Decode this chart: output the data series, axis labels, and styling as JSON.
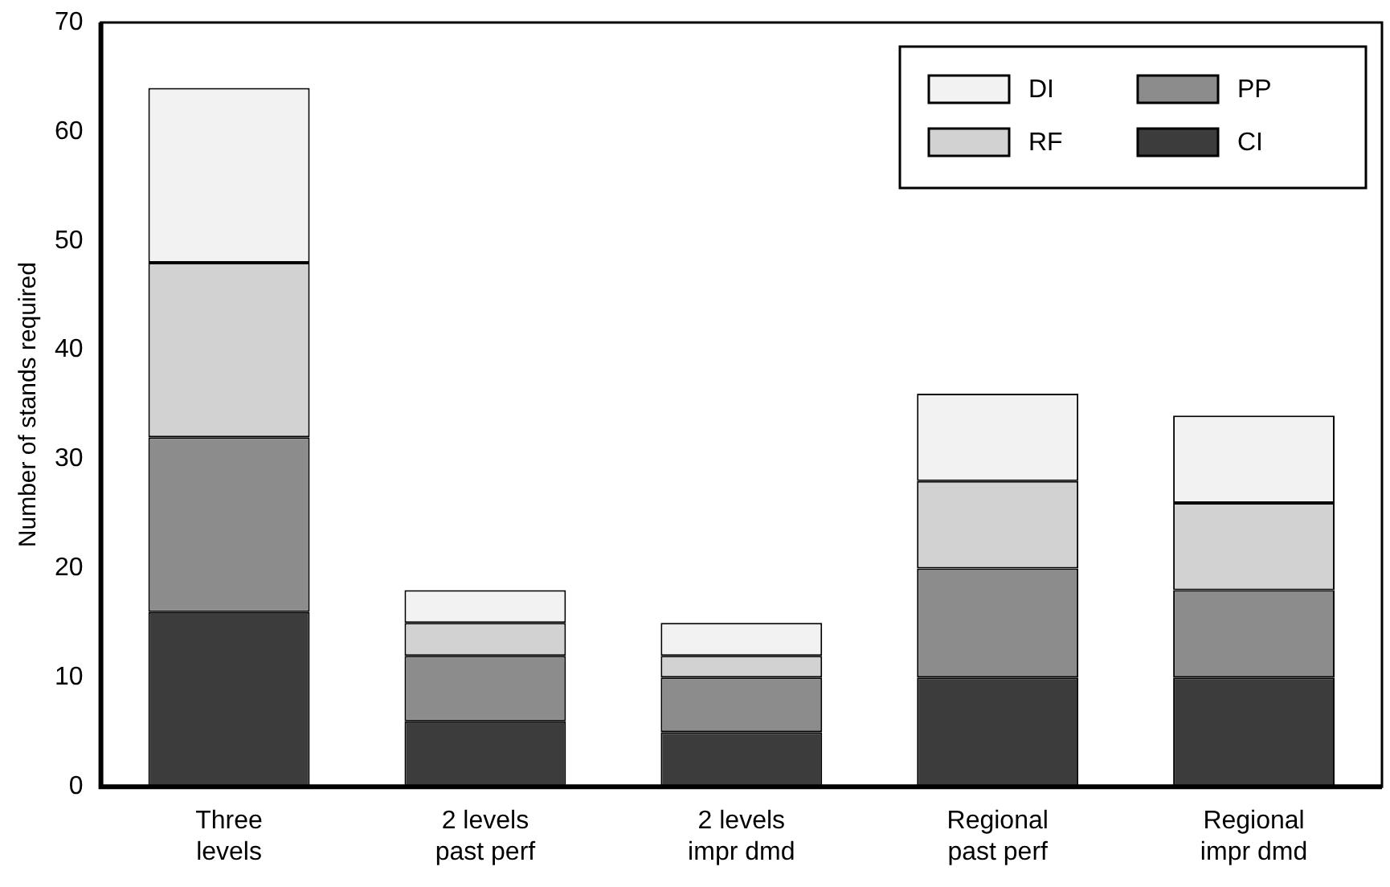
{
  "chart_data": {
    "type": "bar",
    "stacked": true,
    "ylabel": "Number of stands required",
    "categories": [
      "Three\nlevels",
      "2 levels\npast perf",
      "2 levels\nimpr dmd",
      "Regional\npast perf",
      "Regional\nimpr dmd"
    ],
    "series": [
      {
        "name": "CI",
        "color": "#3c3c3c",
        "values": [
          16,
          6,
          5,
          10,
          10
        ]
      },
      {
        "name": "PP",
        "color": "#8c8c8c",
        "values": [
          16,
          6,
          5,
          10,
          8
        ]
      },
      {
        "name": "RF",
        "color": "#d2d2d2",
        "values": [
          16,
          3,
          2,
          8,
          8
        ]
      },
      {
        "name": "DI",
        "color": "#f2f2f2",
        "values": [
          16,
          3,
          3,
          8,
          8
        ]
      }
    ],
    "ylim": [
      0,
      70
    ],
    "yticks": [
      0,
      10,
      20,
      30,
      40,
      50,
      60,
      70
    ],
    "grid": false,
    "legend": "top right"
  }
}
